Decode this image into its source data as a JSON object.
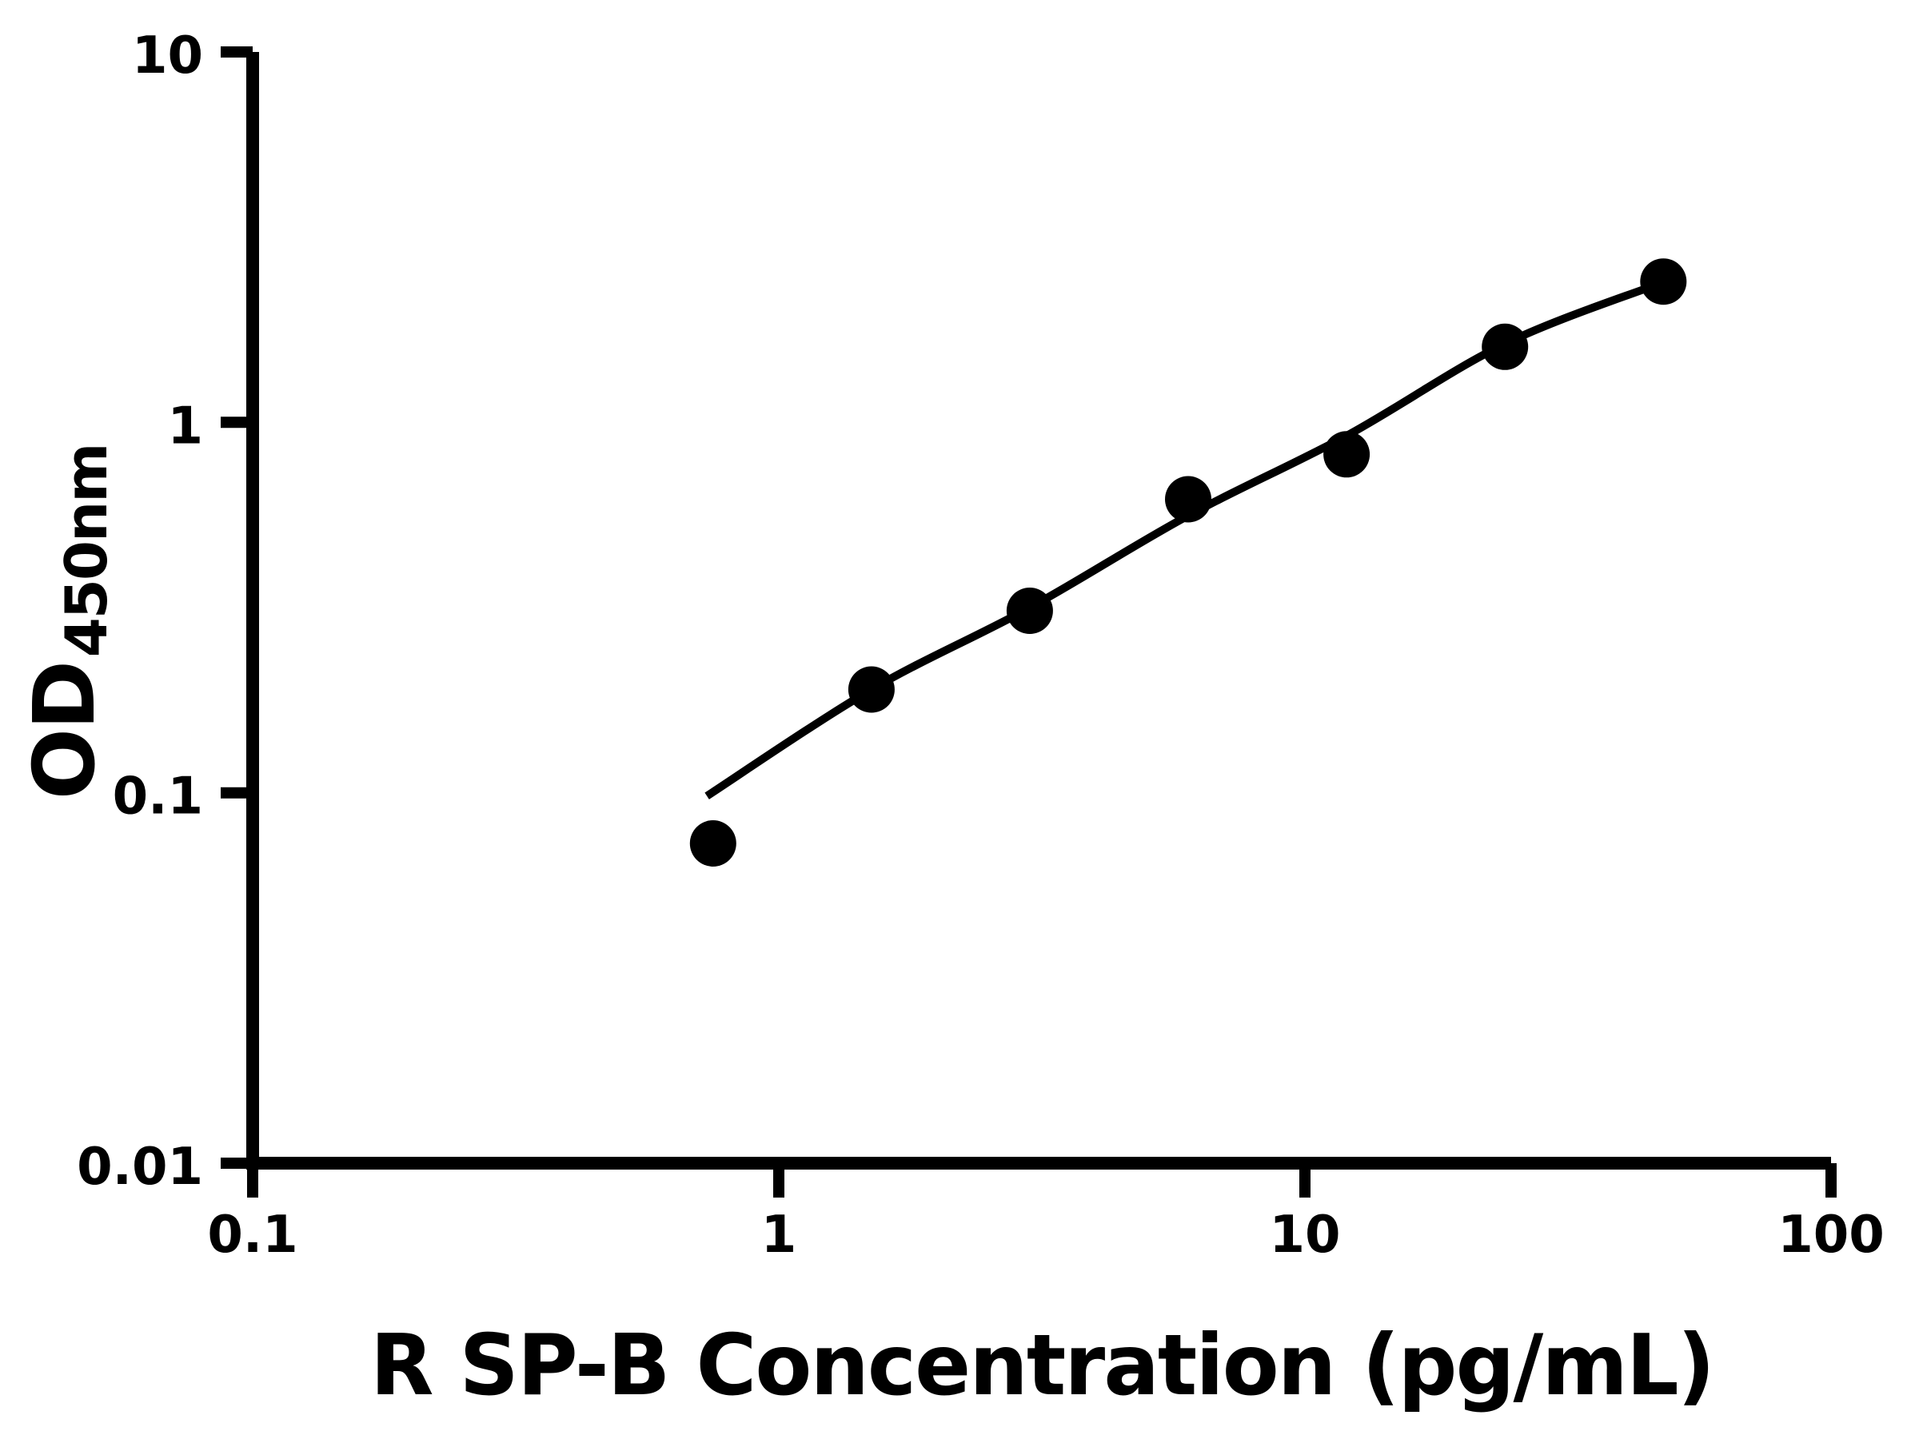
{
  "chart_data": {
    "type": "scatter",
    "title": "",
    "xlabel": "R SP-B Concentration (pg/mL)",
    "ylabel_main": "OD",
    "ylabel_sub": "450nm",
    "xscale": "log",
    "yscale": "log",
    "xlim": [
      0.1,
      100
    ],
    "ylim": [
      0.01,
      10
    ],
    "grid": false,
    "legend": "none",
    "x_ticks": [
      {
        "value": 0.1,
        "label": "0.1"
      },
      {
        "value": 1,
        "label": "1"
      },
      {
        "value": 10,
        "label": "10"
      },
      {
        "value": 100,
        "label": "100"
      }
    ],
    "y_ticks": [
      {
        "value": 0.01,
        "label": "0.01"
      },
      {
        "value": 0.1,
        "label": "0.1"
      },
      {
        "value": 1,
        "label": "1"
      },
      {
        "value": 10,
        "label": "10"
      }
    ],
    "series": [
      {
        "name": "standard-points",
        "marker": "circle",
        "color": "#000000",
        "x": [
          0.75,
          1.5,
          3,
          6,
          12,
          24,
          48
        ],
        "y": [
          0.073,
          0.19,
          0.31,
          0.62,
          0.82,
          1.6,
          2.4
        ]
      }
    ],
    "fit_curve": {
      "name": "4pl-fit-line",
      "color": "#000000",
      "x": [
        0.73,
        1.5,
        3,
        6,
        12,
        24,
        48
      ],
      "y": [
        0.098,
        0.19,
        0.316,
        0.56,
        0.92,
        1.63,
        2.39
      ]
    },
    "colors": {
      "foreground": "#000000",
      "background": "#ffffff"
    }
  }
}
